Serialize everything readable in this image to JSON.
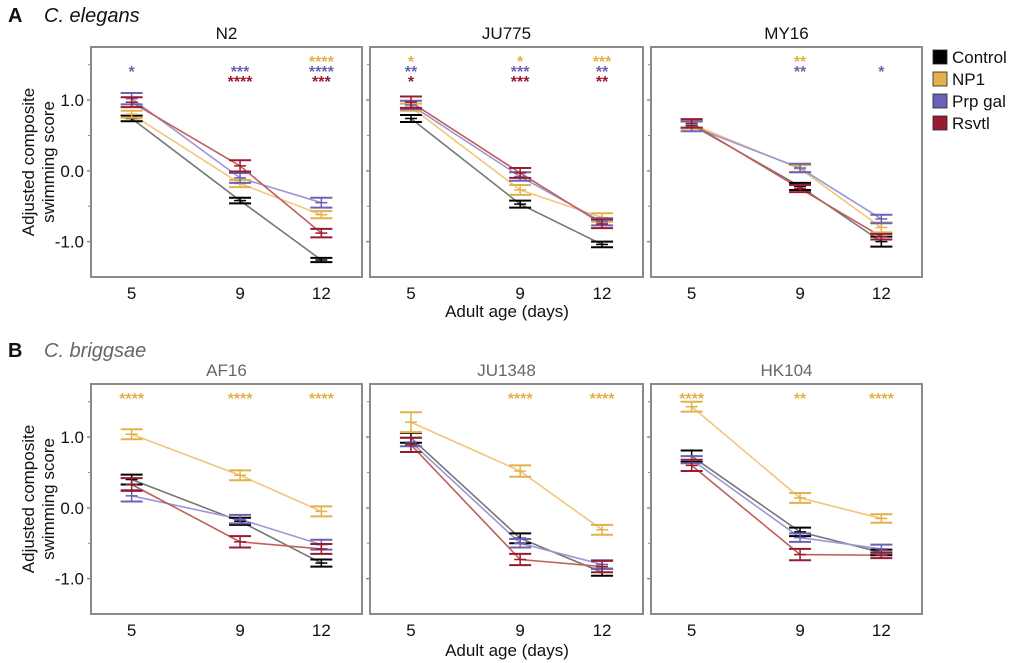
{
  "chart_data": {
    "type": "line",
    "x": [
      5,
      9,
      12
    ],
    "xticks": [
      "5",
      "9",
      "12"
    ],
    "ylabel": "Adjusted composite swimming score",
    "xlabel": "Adult age (days)",
    "yticks": [
      "1.0",
      "0.0",
      "-1.0"
    ],
    "ylim": [
      -1.5,
      1.75
    ],
    "legend": {
      "placement": "right",
      "entries": [
        {
          "name": "Control",
          "color": "#000000",
          "line_color": "#777777"
        },
        {
          "name": "NP1",
          "color": "#e3b14b",
          "line_color": "#f0c77a"
        },
        {
          "name": "Prp gal",
          "color": "#6a63b5",
          "line_color": "#9c97d6"
        },
        {
          "name": "Rsvtl",
          "color": "#9a1b2f",
          "line_color": "#c0605a"
        }
      ]
    },
    "sections": [
      {
        "label": "A",
        "species": "C. elegans",
        "species_color": "#111111",
        "panels": [
          {
            "title": "N2",
            "series": [
              {
                "name": "Control",
                "values": [
                  0.74,
                  -0.42,
                  -1.26
                ],
                "err": [
                  0.04,
                  0.04,
                  0.03
                ]
              },
              {
                "name": "NP1",
                "values": [
                  0.8,
                  -0.18,
                  -0.62
                ],
                "err": [
                  0.05,
                  0.05,
                  0.05
                ]
              },
              {
                "name": "Prp gal",
                "values": [
                  1.02,
                  -0.1,
                  -0.45
                ],
                "err": [
                  0.08,
                  0.07,
                  0.07
                ]
              },
              {
                "name": "Rsvtl",
                "values": [
                  0.97,
                  0.07,
                  -0.88
                ],
                "err": [
                  0.07,
                  0.08,
                  0.06
                ]
              }
            ],
            "significance": [
              {
                "day": 5,
                "rows": [
                  {
                    "series": "Prp gal",
                    "stars": "*"
                  }
                ]
              },
              {
                "day": 9,
                "rows": [
                  {
                    "series": "Prp gal",
                    "stars": "***"
                  },
                  {
                    "series": "Rsvtl",
                    "stars": "****"
                  }
                ]
              },
              {
                "day": 12,
                "rows": [
                  {
                    "series": "NP1",
                    "stars": "****"
                  },
                  {
                    "series": "Prp gal",
                    "stars": "****"
                  },
                  {
                    "series": "Rsvtl",
                    "stars": "***"
                  }
                ]
              }
            ]
          },
          {
            "title": "JU775",
            "series": [
              {
                "name": "Control",
                "values": [
                  0.74,
                  -0.47,
                  -1.04
                ],
                "err": [
                  0.05,
                  0.05,
                  0.04
                ]
              },
              {
                "name": "NP1",
                "values": [
                  0.9,
                  -0.27,
                  -0.66
                ],
                "err": [
                  0.05,
                  0.07,
                  0.06
                ]
              },
              {
                "name": "Prp gal",
                "values": [
                  0.93,
                  -0.08,
                  -0.72
                ],
                "err": [
                  0.06,
                  0.06,
                  0.05
                ]
              },
              {
                "name": "Rsvtl",
                "values": [
                  0.97,
                  -0.03,
                  -0.75
                ],
                "err": [
                  0.08,
                  0.07,
                  0.06
                ]
              }
            ],
            "significance": [
              {
                "day": 5,
                "rows": [
                  {
                    "series": "NP1",
                    "stars": "*"
                  },
                  {
                    "series": "Prp gal",
                    "stars": "**"
                  },
                  {
                    "series": "Rsvtl",
                    "stars": "*"
                  }
                ]
              },
              {
                "day": 9,
                "rows": [
                  {
                    "series": "NP1",
                    "stars": "*"
                  },
                  {
                    "series": "Prp gal",
                    "stars": "***"
                  },
                  {
                    "series": "Rsvtl",
                    "stars": "***"
                  }
                ]
              },
              {
                "day": 12,
                "rows": [
                  {
                    "series": "NP1",
                    "stars": "***"
                  },
                  {
                    "series": "Prp gal",
                    "stars": "**"
                  },
                  {
                    "series": "Rsvtl",
                    "stars": "**"
                  }
                ]
              }
            ]
          },
          {
            "title": "MY16",
            "series": [
              {
                "name": "Control",
                "values": [
                  0.65,
                  -0.22,
                  -1.0
                ],
                "err": [
                  0.05,
                  0.05,
                  0.07
                ]
              },
              {
                "name": "NP1",
                "values": [
                  0.66,
                  0.03,
                  -0.8
                ],
                "err": [
                  0.06,
                  0.05,
                  0.07
                ]
              },
              {
                "name": "Prp gal",
                "values": [
                  0.63,
                  0.04,
                  -0.68
                ],
                "err": [
                  0.07,
                  0.06,
                  0.06
                ]
              },
              {
                "name": "Rsvtl",
                "values": [
                  0.67,
                  -0.25,
                  -0.93
                ],
                "err": [
                  0.06,
                  0.05,
                  0.04
                ]
              }
            ],
            "significance": [
              {
                "day": 5,
                "rows": []
              },
              {
                "day": 9,
                "rows": [
                  {
                    "series": "NP1",
                    "stars": "**"
                  },
                  {
                    "series": "Prp gal",
                    "stars": "**"
                  }
                ]
              },
              {
                "day": 12,
                "rows": [
                  {
                    "series": "Prp gal",
                    "stars": "*"
                  }
                ]
              }
            ]
          }
        ]
      },
      {
        "label": "B",
        "species": "C. briggsae",
        "species_color": "#666666",
        "panels": [
          {
            "title": "AF16",
            "series": [
              {
                "name": "Control",
                "values": [
                  0.4,
                  -0.19,
                  -0.78
                ],
                "err": [
                  0.07,
                  0.05,
                  0.05
                ]
              },
              {
                "name": "NP1",
                "values": [
                  1.04,
                  0.46,
                  -0.05
                ],
                "err": [
                  0.07,
                  0.07,
                  0.07
                ]
              },
              {
                "name": "Prp gal",
                "values": [
                  0.17,
                  -0.16,
                  -0.52
                ],
                "err": [
                  0.08,
                  0.06,
                  0.07
                ]
              },
              {
                "name": "Rsvtl",
                "values": [
                  0.33,
                  -0.48,
                  -0.58
                ],
                "err": [
                  0.09,
                  0.08,
                  0.07
                ]
              }
            ],
            "significance": [
              {
                "day": 5,
                "rows": [
                  {
                    "series": "NP1",
                    "stars": "****"
                  }
                ]
              },
              {
                "day": 9,
                "rows": [
                  {
                    "series": "NP1",
                    "stars": "****"
                  }
                ]
              },
              {
                "day": 12,
                "rows": [
                  {
                    "series": "NP1",
                    "stars": "****"
                  }
                ]
              }
            ]
          },
          {
            "title": "JU1348",
            "series": [
              {
                "name": "Control",
                "values": [
                  0.99,
                  -0.43,
                  -0.91
                ],
                "err": [
                  0.07,
                  0.07,
                  0.05
                ]
              },
              {
                "name": "NP1",
                "values": [
                  1.21,
                  0.52,
                  -0.31
                ],
                "err": [
                  0.14,
                  0.08,
                  0.07
                ]
              },
              {
                "name": "Prp gal",
                "values": [
                  0.93,
                  -0.5,
                  -0.8
                ],
                "err": [
                  0.06,
                  0.06,
                  0.06
                ]
              },
              {
                "name": "Rsvtl",
                "values": [
                  0.89,
                  -0.73,
                  -0.83
                ],
                "err": [
                  0.1,
                  0.08,
                  0.08
                ]
              }
            ],
            "significance": [
              {
                "day": 5,
                "rows": []
              },
              {
                "day": 9,
                "rows": [
                  {
                    "series": "NP1",
                    "stars": "****"
                  }
                ]
              },
              {
                "day": 12,
                "rows": [
                  {
                    "series": "NP1",
                    "stars": "****"
                  }
                ]
              }
            ]
          },
          {
            "title": "HK104",
            "series": [
              {
                "name": "Control",
                "values": [
                  0.73,
                  -0.34,
                  -0.63
                ],
                "err": [
                  0.08,
                  0.06,
                  0.04
                ]
              },
              {
                "name": "NP1",
                "values": [
                  1.43,
                  0.14,
                  -0.15
                ],
                "err": [
                  0.07,
                  0.07,
                  0.06
                ]
              },
              {
                "name": "Prp gal",
                "values": [
                  0.68,
                  -0.42,
                  -0.58
                ],
                "err": [
                  0.05,
                  0.06,
                  0.06
                ]
              },
              {
                "name": "Rsvtl",
                "values": [
                  0.6,
                  -0.66,
                  -0.67
                ],
                "err": [
                  0.08,
                  0.08,
                  0.04
                ]
              }
            ],
            "significance": [
              {
                "day": 5,
                "rows": [
                  {
                    "series": "NP1",
                    "stars": "****"
                  }
                ]
              },
              {
                "day": 9,
                "rows": [
                  {
                    "series": "NP1",
                    "stars": "**"
                  }
                ]
              },
              {
                "day": 12,
                "rows": [
                  {
                    "series": "NP1",
                    "stars": "****"
                  }
                ]
              }
            ]
          }
        ]
      }
    ]
  }
}
